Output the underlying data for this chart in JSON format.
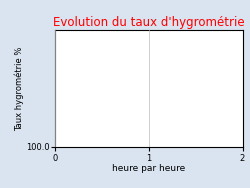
{
  "title": "Evolution du taux d'hygrométrie",
  "title_color": "#ff0000",
  "xlabel": "heure par heure",
  "ylabel": "Taux hygrométrie %",
  "background_color": "#d9e4f0",
  "plot_bg_color": "#ffffff",
  "xlim": [
    0,
    2
  ],
  "ylim_bottom_label": "100.0",
  "xticks": [
    0,
    1,
    2
  ],
  "grid": true,
  "title_fontsize": 8.5,
  "label_fontsize": 6.5,
  "tick_fontsize": 6,
  "ylabel_fontsize": 6
}
